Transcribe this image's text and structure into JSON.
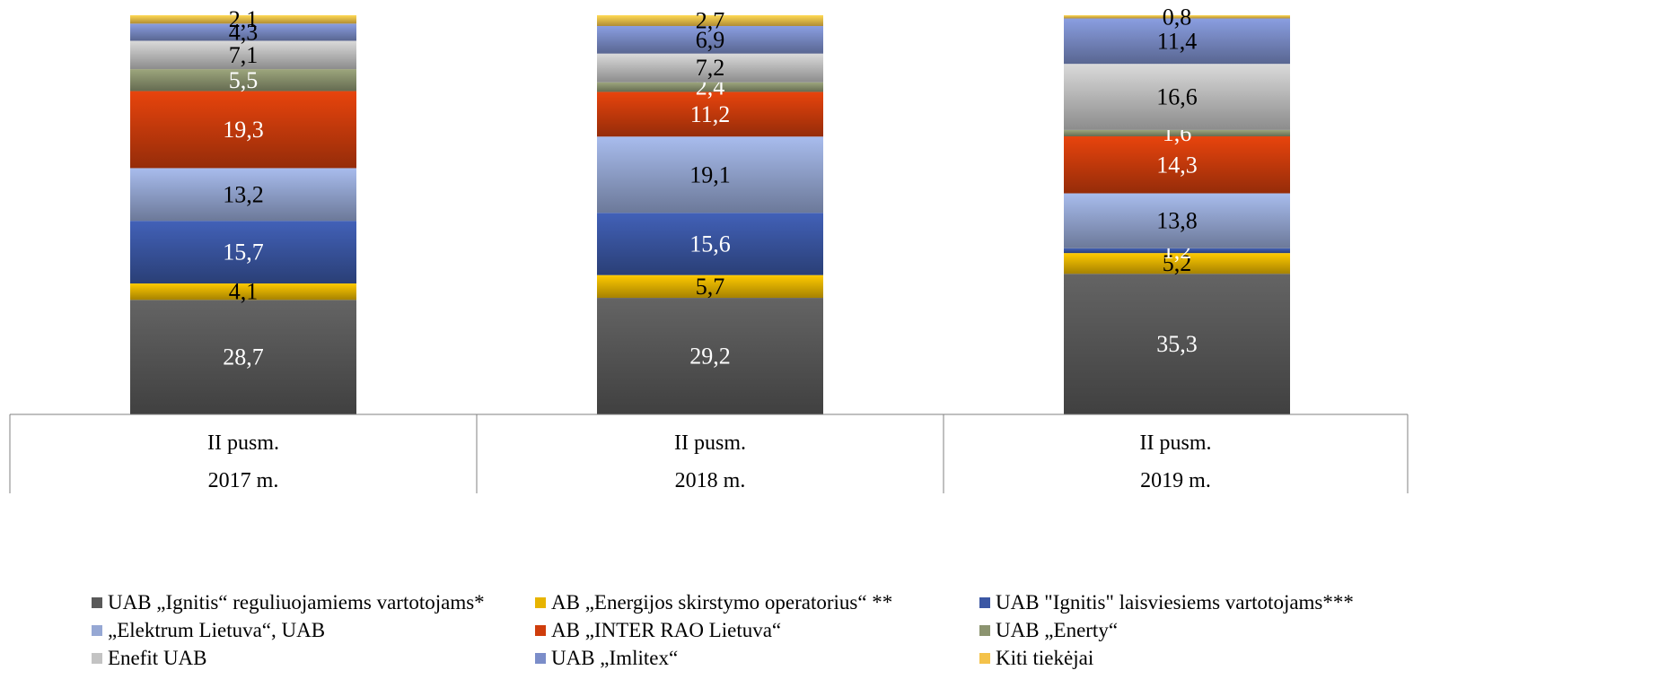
{
  "chart_data": {
    "type": "bar",
    "stacked": true,
    "title": "",
    "xlabel": "",
    "ylabel": "",
    "categories": [
      {
        "period": "II pusm.",
        "year": "2017 m."
      },
      {
        "period": "II pusm.",
        "year": "2018 m."
      },
      {
        "period": "II pusm.",
        "year": "2019 m."
      }
    ],
    "series": [
      {
        "name": "UAB „Ignitis“ reguliuojamiems vartotojams*",
        "color": "#595959",
        "labels": [
          "28,7",
          "29,2",
          "35,3"
        ],
        "values": [
          28.7,
          29.2,
          35.3
        ],
        "label_color": "#ffffff"
      },
      {
        "name": "AB „Energijos skirstymo operatorius“ **",
        "color": "#e7b400",
        "labels": [
          "4,1",
          "5,7",
          "5,2"
        ],
        "values": [
          4.1,
          5.7,
          5.2
        ],
        "label_color": "#000000"
      },
      {
        "name": "UAB \"Ignitis\" laisviesiems vartotojams***",
        "color": "#3b57a4",
        "labels": [
          "15,7",
          "15,6",
          "1,2"
        ],
        "values": [
          15.7,
          15.6,
          1.2
        ],
        "label_color": "#ffffff"
      },
      {
        "name": "„Elektrum Lietuva“, UAB",
        "color": "#96a8d4",
        "labels": [
          "13,2",
          "19,1",
          "13,8"
        ],
        "values": [
          13.2,
          19.1,
          13.8
        ],
        "label_color": "#000000"
      },
      {
        "name": "AB „INTER RAO Lietuva“",
        "color": "#cf3d0c",
        "labels": [
          "19,3",
          "11,2",
          "14,3"
        ],
        "values": [
          19.3,
          11.2,
          14.3
        ],
        "label_color": "#ffffff"
      },
      {
        "name": "UAB „Enerty“",
        "color": "#8c9470",
        "labels": [
          "5,5",
          "2,4",
          "1,6"
        ],
        "values": [
          5.5,
          2.4,
          1.6
        ],
        "label_color": "#ffffff"
      },
      {
        "name": "Enefit UAB",
        "color": "#c3c3c3",
        "labels": [
          "7,1",
          "7,2",
          "16,6"
        ],
        "values": [
          7.1,
          7.2,
          16.6
        ],
        "label_color": "#000000"
      },
      {
        "name": "UAB „Imlitex“",
        "color": "#7b8dc9",
        "labels": [
          "4,3",
          "6,9",
          "11,4"
        ],
        "values": [
          4.3,
          6.9,
          11.4
        ],
        "label_color": "#000000"
      },
      {
        "name": "Kiti tiekėjai",
        "color": "#f4c24a",
        "labels": [
          "2,1",
          "2,7",
          "0,8"
        ],
        "values": [
          2.1,
          2.7,
          0.8
        ],
        "label_color": "#000000"
      }
    ],
    "ylim": [
      0,
      100
    ],
    "grid": false,
    "legend_position": "bottom"
  }
}
